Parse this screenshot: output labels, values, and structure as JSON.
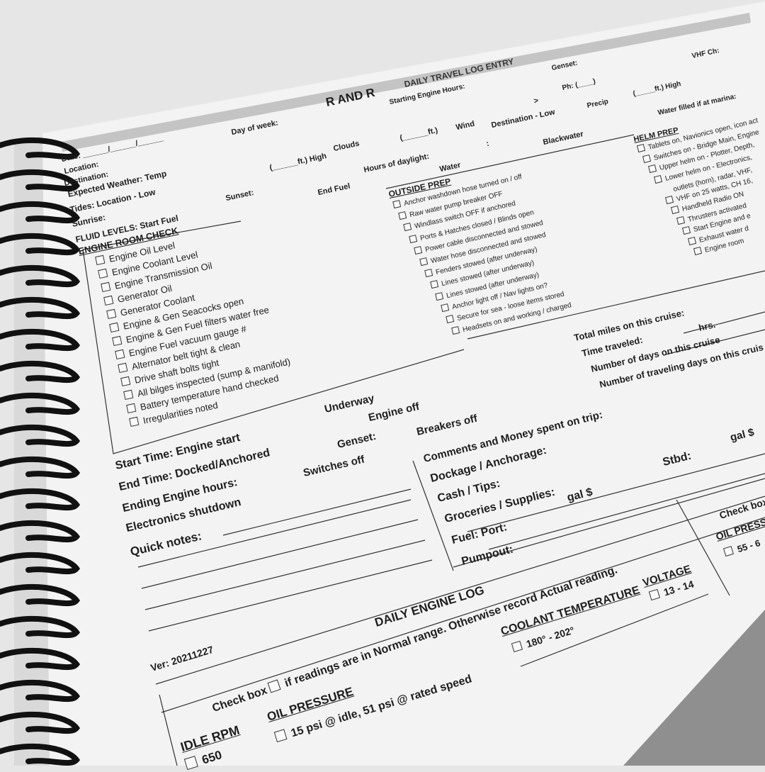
{
  "header": {
    "brand": "R AND R",
    "title": "DAILY TRAVEL LOG ENTRY"
  },
  "top_fields": {
    "starting_engine_hours": "Starting Engine Hours:",
    "genset": "Genset:",
    "vhf_ch": "VHF Ch:",
    "day_of_week": "Day of week:",
    "ph": "Ph: (____)",
    "precip": "Precip",
    "ft_high_right": "(_____ft.)  High",
    "date": "Date: ______/______/______",
    "location": "Location:",
    "clouds": "Clouds",
    "wind": "Wind",
    "destination_low": "Destination - Low",
    "arrow": ">",
    "water_filled": "Water filled if at marina:",
    "destination": "Destination:",
    "ft_high_left": "(______ft.)  High",
    "hours_daylight": "Hours of daylight:",
    "colon": ":",
    "blackwater": "Blackwater",
    "expected_weather": "Expected Weather:  Temp",
    "temp_ft": "(______ft.)",
    "tides": "Tides: Location - Low",
    "sunset": "Sunset:",
    "end_fuel": "End Fuel",
    "water": "Water",
    "sunrise": "Sunrise:",
    "fluid_levels": "FLUID LEVELS:  Start Fuel"
  },
  "engine_room": {
    "title": "ENGINE ROOM CHECK",
    "items": [
      "Engine Oil Level",
      "Engine Coolant Level",
      "Engine Transmission Oil",
      "Generator Oil",
      "Generator Coolant",
      "Engine & Gen Seacocks open",
      "Engine & Gen Fuel filters water free",
      "Engine Fuel vacuum gauge #",
      "Alternator belt tight & clean",
      "Drive shaft bolts tight",
      "All bilges inspected (sump & manifold)",
      "Battery temperature hand checked",
      "Irregularities noted"
    ]
  },
  "outside_prep": {
    "title": "OUTSIDE PREP",
    "items": [
      "Anchor washdown hose turned on / off",
      "Raw water pump breaker OFF",
      "Windlass switch OFF if anchored",
      "Ports & Hatches closed / Blinds open",
      "Power cable disconnected and stowed",
      "Water hose disconnected and stowed",
      "Fenders stowed (after underway)",
      "Lines stowed (after underway)",
      "Lines stowed (after underway)",
      "Anchor light off / Nav lights on?",
      "Secure for sea - loose items stored",
      "Headsets on and working / charged"
    ]
  },
  "helm_prep": {
    "title": "HELM PREP",
    "items": [
      {
        "text": "Tablets on, Navionics open, icon act",
        "box": true
      },
      {
        "text": "Switches on - Bridge Main, Engine",
        "box": true
      },
      {
        "text": "Upper helm on - Plotter, Depth,",
        "box": true
      },
      {
        "text": "Lower helm on - Electronics,",
        "box": true
      },
      {
        "text": "outlets (horn), radar, VHF,",
        "box": false
      },
      {
        "text": "VHF on 25 watts, CH 16,",
        "box": true
      },
      {
        "text": "Handheld Radio ON",
        "box": true
      },
      {
        "text": "Thrusters activated",
        "box": true
      },
      {
        "text": "Start Engine and e",
        "box": true
      },
      {
        "text": "Exhaust water d",
        "box": true
      },
      {
        "text": "Engine room",
        "box": true
      }
    ]
  },
  "cruise_totals": {
    "total_miles": "Total miles on this cruise:",
    "time_traveled": "Time traveled:",
    "hrs": "hrs.",
    "days": "Number of days on this cruise",
    "traveling_days": "Number of traveling days on this cruis"
  },
  "times": {
    "underway": "Underway",
    "engine_off": "Engine off",
    "start_time": "Start Time: Engine start",
    "genset": "Genset:",
    "breakers_off": "Breakers off",
    "end_time": "End Time: Docked/Anchored",
    "switches_off": "Switches off",
    "ending_engine_hours": "Ending Engine hours:",
    "electronics_shutdown": "Electronics shutdown",
    "quick_notes": "Quick notes:"
  },
  "money": {
    "comments": "Comments and Money spent on trip:",
    "dockage": "Dockage / Anchorage:",
    "cash_tips": "Cash / Tips:",
    "stbd": "Stbd:",
    "gal_right": "gal  $",
    "groceries": "Groceries / Supplies:",
    "gal_left": "gal   $",
    "fuel_port": "Fuel:  Port:",
    "pumpout": "Pumpout:"
  },
  "engine_log": {
    "title": "DAILY ENGINE LOG",
    "version": "Ver: 20211227",
    "check_box": "Check box",
    "instruction": "if readings are in Normal range. Otherwise record Actual reading.",
    "idle_rpm": "IDLE RPM",
    "idle_rpm_value": "650",
    "oil_pressure": "OIL PRESSURE",
    "oil_pressure_value": "15 psi @ idle, 51 psi @ rated speed",
    "coolant_temp": "COOLANT TEMPERATURE",
    "coolant_value": "180° - 202°",
    "voltage": "VOLTAGE",
    "voltage_value": "13 - 14",
    "right_check_box": "Check box",
    "right_oil_pressure": "OIL PRESS",
    "right_oil_value": "55 - 6"
  },
  "colors": {
    "page": "#f3f3f3",
    "header_band": "#c4c4c4",
    "ink": "#1e1e1e",
    "binding": "#111111",
    "background": "#e6e6e6"
  }
}
